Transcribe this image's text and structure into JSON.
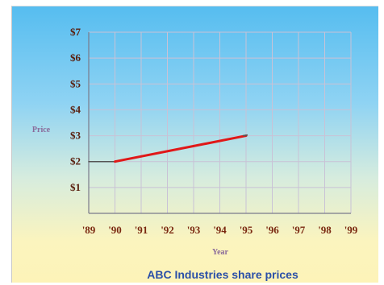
{
  "chart_data": {
    "type": "line",
    "title": "ABC Industries share prices",
    "xlabel": "Year",
    "ylabel": "Price",
    "x_categories": [
      "'89",
      "'90",
      "'91",
      "'92",
      "'93",
      "'94",
      "'95",
      "'96",
      "'97",
      "'98",
      "'99"
    ],
    "y_ticks": [
      "$1",
      "$2",
      "$3",
      "$4",
      "$5",
      "$6",
      "$7"
    ],
    "ylim": [
      0,
      7
    ],
    "grid": true,
    "series": [
      {
        "color": "#555555",
        "points": [
          {
            "x": "'89",
            "y": 2
          },
          {
            "x": "'90",
            "y": 2
          }
        ]
      },
      {
        "color": "#e01818",
        "points": [
          {
            "x": "'90",
            "y": 2
          },
          {
            "x": "'95",
            "y": 3
          }
        ]
      },
      {
        "color": "#555555",
        "points": [
          {
            "x": "'95",
            "y": 3
          },
          {
            "x": "'95",
            "y": 3
          }
        ]
      }
    ],
    "extra_segment": {
      "color": "#555555",
      "from": {
        "x": "'94.8",
        "y": 2.96
      },
      "to": {
        "x": "'95",
        "y": 3
      }
    }
  }
}
